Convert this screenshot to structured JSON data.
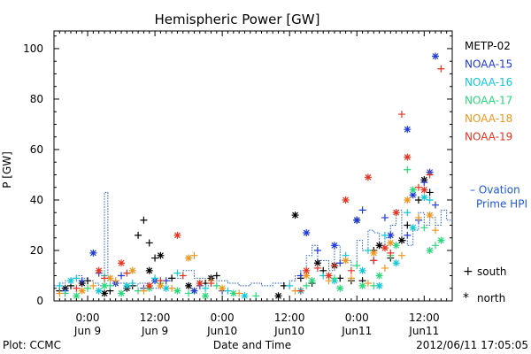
{
  "footer": {
    "left": "Plot: CCMC",
    "right": "2012/06/11 17:05:05"
  },
  "chart_data": {
    "type": "scatter",
    "title": "Hemispheric Power [GW]",
    "xlabel": "Date and Time",
    "ylabel": "P [GW]",
    "x_units": "hours since 2012-06-08 18:00",
    "xlim": [
      0,
      71
    ],
    "ylim": [
      0,
      107
    ],
    "yticks": [
      0,
      20,
      40,
      60,
      80,
      100
    ],
    "xticks": [
      {
        "x": 6,
        "line1": "0:00",
        "line2": "Jun 9"
      },
      {
        "x": 18,
        "line1": "12:00",
        "line2": "Jun 9"
      },
      {
        "x": 30,
        "line1": "0:00",
        "line2": "Jun10"
      },
      {
        "x": 42,
        "line1": "12:00",
        "line2": "Jun10"
      },
      {
        "x": 54,
        "line1": "0:00",
        "line2": "Jun11"
      },
      {
        "x": 66,
        "line1": "12:00",
        "line2": "Jun11"
      }
    ],
    "legend_placement": "right",
    "markers_legend": [
      {
        "symbol": "+",
        "label": "south"
      },
      {
        "symbol": "*",
        "label": "north"
      }
    ],
    "ovation": {
      "name_line1": "– Ovation",
      "name_line2": "Prime HPI",
      "color": "#1f5bd6",
      "steps": [
        [
          0,
          6
        ],
        [
          1,
          7
        ],
        [
          2,
          8
        ],
        [
          3,
          9
        ],
        [
          4,
          10
        ],
        [
          5,
          9
        ],
        [
          6,
          8
        ],
        [
          7,
          7
        ],
        [
          8,
          6
        ],
        [
          9,
          43
        ],
        [
          9.6,
          8
        ],
        [
          11,
          7
        ],
        [
          13,
          6
        ],
        [
          15,
          7
        ],
        [
          17,
          5
        ],
        [
          19,
          8
        ],
        [
          21,
          9
        ],
        [
          23,
          12
        ],
        [
          25,
          9
        ],
        [
          27,
          6
        ],
        [
          29,
          8
        ],
        [
          31,
          7
        ],
        [
          33,
          6
        ],
        [
          35,
          7
        ],
        [
          37,
          6
        ],
        [
          39,
          7
        ],
        [
          41,
          6
        ],
        [
          42,
          8
        ],
        [
          43,
          10
        ],
        [
          44,
          12
        ],
        [
          45,
          18
        ],
        [
          46,
          22
        ],
        [
          47,
          16
        ],
        [
          49,
          12
        ],
        [
          50,
          22
        ],
        [
          51,
          16
        ],
        [
          53,
          14
        ],
        [
          54,
          24
        ],
        [
          55,
          20
        ],
        [
          56,
          28
        ],
        [
          57,
          27
        ],
        [
          58,
          22
        ],
        [
          59,
          25
        ],
        [
          60,
          30
        ],
        [
          61,
          36
        ],
        [
          62,
          24
        ],
        [
          63,
          22
        ],
        [
          64,
          28
        ],
        [
          65,
          35
        ],
        [
          66,
          30
        ],
        [
          67,
          33
        ],
        [
          68,
          30
        ],
        [
          69,
          36
        ],
        [
          70,
          32
        ]
      ],
      "level_right": 44
    },
    "series": [
      {
        "name": "METP-02",
        "color": "#000000",
        "south": [
          [
            1,
            4
          ],
          [
            3,
            6
          ],
          [
            6,
            8
          ],
          [
            10,
            4
          ],
          [
            14,
            6
          ],
          [
            15,
            26
          ],
          [
            16,
            32
          ],
          [
            17,
            23
          ],
          [
            18,
            17
          ],
          [
            21,
            9
          ],
          [
            27,
            7
          ],
          [
            29,
            10
          ],
          [
            41,
            6
          ],
          [
            44,
            9
          ],
          [
            46,
            7
          ],
          [
            48,
            12
          ],
          [
            51,
            9
          ],
          [
            53,
            8
          ],
          [
            55,
            8
          ],
          [
            57,
            20
          ],
          [
            60,
            17
          ],
          [
            63,
            30
          ],
          [
            65,
            40
          ],
          [
            67,
            43
          ]
        ],
        "north": [
          [
            2,
            5
          ],
          [
            5,
            7
          ],
          [
            9,
            3
          ],
          [
            13,
            5
          ],
          [
            17,
            12
          ],
          [
            19,
            18
          ],
          [
            24,
            6
          ],
          [
            28,
            9
          ],
          [
            40,
            2
          ],
          [
            43,
            34
          ],
          [
            47,
            15
          ],
          [
            50,
            14
          ],
          [
            54,
            32
          ],
          [
            58,
            22
          ],
          [
            62,
            24
          ],
          [
            66,
            48
          ]
        ]
      },
      {
        "name": "NOAA-15",
        "color": "#1f3ad6",
        "south": [
          [
            2,
            4
          ],
          [
            5,
            8
          ],
          [
            8,
            11
          ],
          [
            12,
            10
          ],
          [
            16,
            5
          ],
          [
            20,
            8
          ],
          [
            26,
            6
          ],
          [
            30,
            4
          ],
          [
            44,
            10
          ],
          [
            47,
            20
          ],
          [
            51,
            15
          ],
          [
            55,
            36
          ],
          [
            57,
            16
          ],
          [
            59,
            33
          ],
          [
            63,
            26
          ],
          [
            65,
            32
          ],
          [
            66,
            47
          ],
          [
            68,
            38
          ]
        ],
        "north": [
          [
            7,
            19
          ],
          [
            11,
            7
          ],
          [
            18,
            8
          ],
          [
            25,
            4
          ],
          [
            45,
            27
          ],
          [
            50,
            22
          ],
          [
            54,
            32
          ],
          [
            60,
            26
          ],
          [
            63,
            68
          ],
          [
            64,
            42
          ],
          [
            67,
            51
          ],
          [
            68,
            97
          ]
        ]
      },
      {
        "name": "NOAA-16",
        "color": "#10c8d8",
        "south": [
          [
            1,
            6
          ],
          [
            4,
            9
          ],
          [
            9,
            10
          ],
          [
            14,
            7
          ],
          [
            18,
            9
          ],
          [
            22,
            11
          ],
          [
            27,
            5
          ],
          [
            31,
            4
          ],
          [
            42,
            6
          ],
          [
            48,
            10
          ],
          [
            52,
            18
          ],
          [
            56,
            20
          ],
          [
            59,
            26
          ],
          [
            63,
            35
          ],
          [
            67,
            40
          ]
        ],
        "north": [
          [
            3,
            8
          ],
          [
            8,
            4
          ],
          [
            13,
            6
          ],
          [
            20,
            5
          ],
          [
            26,
            7
          ],
          [
            34,
            2
          ],
          [
            44,
            4
          ],
          [
            50,
            8
          ],
          [
            55,
            12
          ],
          [
            58,
            6
          ],
          [
            61,
            15
          ],
          [
            64,
            29
          ],
          [
            66,
            41
          ]
        ]
      },
      {
        "name": "NOAA-17",
        "color": "#28d87a",
        "south": [
          [
            2,
            3
          ],
          [
            6,
            5
          ],
          [
            10,
            6
          ],
          [
            15,
            4
          ],
          [
            19,
            7
          ],
          [
            24,
            3
          ],
          [
            29,
            6
          ],
          [
            36,
            2
          ],
          [
            45,
            6
          ],
          [
            50,
            9
          ],
          [
            54,
            14
          ],
          [
            57,
            6
          ],
          [
            60,
            18
          ],
          [
            63,
            52
          ],
          [
            66,
            29
          ],
          [
            68,
            22
          ]
        ],
        "north": [
          [
            4,
            2
          ],
          [
            9,
            6
          ],
          [
            12,
            3
          ],
          [
            17,
            5
          ],
          [
            22,
            4
          ],
          [
            27,
            2
          ],
          [
            32,
            3
          ],
          [
            46,
            8
          ],
          [
            51,
            5
          ],
          [
            55,
            6
          ],
          [
            58,
            10
          ],
          [
            61,
            22
          ],
          [
            64,
            44
          ],
          [
            67,
            20
          ],
          [
            69,
            24
          ]
        ]
      },
      {
        "name": "NOAA-18",
        "color": "#f0961e",
        "south": [
          [
            1,
            3
          ],
          [
            7,
            6
          ],
          [
            11,
            8
          ],
          [
            16,
            4
          ],
          [
            21,
            5
          ],
          [
            25,
            18
          ],
          [
            28,
            8
          ],
          [
            33,
            3
          ],
          [
            43,
            4
          ],
          [
            49,
            8
          ],
          [
            53,
            9
          ],
          [
            56,
            7
          ],
          [
            59,
            13
          ],
          [
            62,
            18
          ],
          [
            65,
            33
          ],
          [
            68,
            28
          ]
        ],
        "north": [
          [
            5,
            4
          ],
          [
            10,
            9
          ],
          [
            14,
            12
          ],
          [
            19,
            6
          ],
          [
            24,
            17
          ],
          [
            30,
            5
          ],
          [
            45,
            10
          ],
          [
            52,
            16
          ],
          [
            57,
            19
          ],
          [
            60,
            23
          ],
          [
            63,
            40
          ],
          [
            67,
            34
          ]
        ]
      },
      {
        "name": "NOAA-19",
        "color": "#e8321e",
        "south": [
          [
            4,
            5
          ],
          [
            9,
            9
          ],
          [
            13,
            11
          ],
          [
            19,
            8
          ],
          [
            23,
            10
          ],
          [
            28,
            7
          ],
          [
            44,
            4
          ],
          [
            47,
            13
          ],
          [
            50,
            14
          ],
          [
            53,
            12
          ],
          [
            57,
            16
          ],
          [
            60,
            19
          ],
          [
            62,
            74
          ],
          [
            65,
            45
          ],
          [
            67,
            50
          ],
          [
            69,
            92
          ]
        ],
        "north": [
          [
            8,
            12
          ],
          [
            12,
            15
          ],
          [
            17,
            6
          ],
          [
            22,
            26
          ],
          [
            26,
            7
          ],
          [
            45,
            12
          ],
          [
            49,
            10
          ],
          [
            52,
            40
          ],
          [
            56,
            49
          ],
          [
            59,
            21
          ],
          [
            61,
            35
          ],
          [
            63,
            57
          ],
          [
            66,
            44
          ]
        ]
      }
    ]
  }
}
